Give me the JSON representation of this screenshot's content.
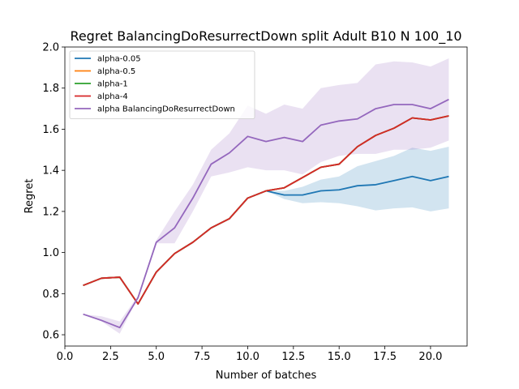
{
  "chart_data": {
    "type": "line",
    "title": "Regret BalancingDoResurrectDown split Adult B10 N 100_10",
    "xlabel": "Number of batches",
    "ylabel": "Regret",
    "xlim": [
      0.0,
      22.0
    ],
    "ylim": [
      0.545,
      2.0
    ],
    "xticks": [
      0.0,
      2.5,
      5.0,
      7.5,
      10.0,
      12.5,
      15.0,
      17.5,
      20.0
    ],
    "xtick_labels": [
      "0.0",
      "2.5",
      "5.0",
      "7.5",
      "10.0",
      "12.5",
      "15.0",
      "17.5",
      "20.0"
    ],
    "yticks": [
      0.6,
      0.8,
      1.0,
      1.2,
      1.4,
      1.6,
      1.8,
      2.0
    ],
    "ytick_labels": [
      "0.6",
      "0.8",
      "1.0",
      "1.2",
      "1.4",
      "1.6",
      "1.8",
      "2.0"
    ],
    "grid": false,
    "legend_position": "top-left",
    "x": [
      1,
      2,
      3,
      4,
      5,
      6,
      7,
      8,
      9,
      10,
      11,
      12,
      13,
      14,
      15,
      16,
      17,
      18,
      19,
      20,
      21
    ],
    "series": [
      {
        "name": "alpha-0.05",
        "color": "#1f77b4",
        "values": [
          0.84,
          0.875,
          0.88,
          0.75,
          0.905,
          0.995,
          1.05,
          1.12,
          1.165,
          1.265,
          1.3,
          1.28,
          1.28,
          1.3,
          1.305,
          1.325,
          1.33,
          1.35,
          1.37,
          1.35,
          1.37
        ],
        "band": {
          "start_index": 10,
          "lower": [
            1.3,
            1.26,
            1.24,
            1.245,
            1.24,
            1.225,
            1.205,
            1.215,
            1.22,
            1.2,
            1.215
          ],
          "upper": [
            1.3,
            1.3,
            1.32,
            1.355,
            1.37,
            1.42,
            1.445,
            1.47,
            1.51,
            1.495,
            1.515
          ]
        }
      },
      {
        "name": "alpha-0.5",
        "color": "#ff7f0e",
        "values": [
          0.84,
          0.875,
          0.88,
          0.75,
          0.905,
          0.995,
          1.05,
          1.12,
          1.165,
          1.265,
          1.3,
          1.315,
          1.365,
          1.415,
          1.43,
          1.515,
          1.57,
          1.605,
          1.655,
          1.645,
          1.665
        ]
      },
      {
        "name": "alpha-1",
        "color": "#2ca02c",
        "values": [
          0.84,
          0.875,
          0.88,
          0.75,
          0.905,
          0.995,
          1.05,
          1.12,
          1.165,
          1.265,
          1.3,
          1.315,
          1.365,
          1.415,
          1.43,
          1.515,
          1.57,
          1.605,
          1.655,
          1.645,
          1.665
        ]
      },
      {
        "name": "alpha-4",
        "color": "#d62728",
        "values": [
          0.84,
          0.875,
          0.88,
          0.75,
          0.905,
          0.995,
          1.05,
          1.12,
          1.165,
          1.265,
          1.3,
          1.315,
          1.365,
          1.415,
          1.43,
          1.515,
          1.57,
          1.605,
          1.655,
          1.645,
          1.665
        ]
      },
      {
        "name": "alpha BalancingDoResurrectDown",
        "color": "#9467bd",
        "values": [
          0.7,
          0.67,
          0.635,
          0.78,
          1.05,
          1.12,
          1.265,
          1.43,
          1.485,
          1.565,
          1.54,
          1.56,
          1.54,
          1.62,
          1.64,
          1.65,
          1.7,
          1.72,
          1.72,
          1.7,
          1.745
        ],
        "band": {
          "start_index": 0,
          "lower": [
            0.7,
            0.665,
            0.605,
            0.78,
            1.045,
            1.045,
            1.2,
            1.37,
            1.39,
            1.415,
            1.4,
            1.4,
            1.38,
            1.44,
            1.47,
            1.48,
            1.48,
            1.5,
            1.5,
            1.51,
            1.545
          ],
          "upper": [
            0.7,
            0.69,
            0.665,
            0.79,
            1.06,
            1.2,
            1.33,
            1.5,
            1.58,
            1.715,
            1.675,
            1.72,
            1.7,
            1.8,
            1.815,
            1.825,
            1.915,
            1.93,
            1.925,
            1.905,
            1.945
          ]
        }
      }
    ]
  }
}
